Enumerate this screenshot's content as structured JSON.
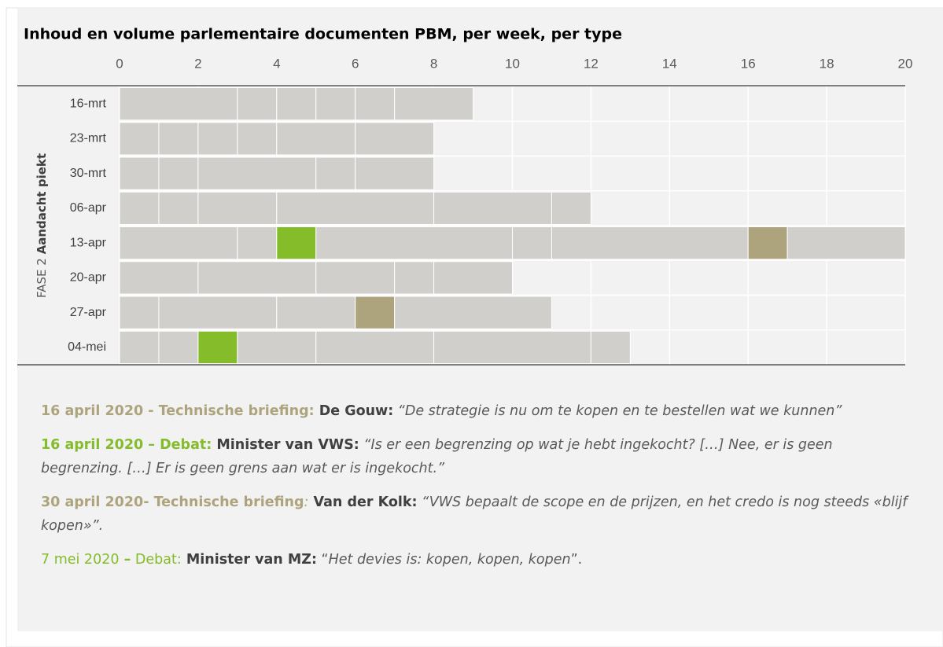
{
  "chart_data": {
    "type": "stacked-barh",
    "title": "Inhoud en volume parlementaire documenten PBM, per week, per type",
    "y_label_parts": [
      "FASE 2",
      "Aandacht piekt"
    ],
    "xlim": [
      0,
      20
    ],
    "xticks": [
      0,
      2,
      4,
      6,
      8,
      10,
      12,
      14,
      16,
      18,
      20
    ],
    "grid": true,
    "rows": [
      {
        "label": "16-mrt",
        "segments": [
          {
            "value": 3,
            "color": "#d0cfcb"
          },
          {
            "value": 1,
            "color": "#d0cfcb"
          },
          {
            "value": 1,
            "color": "#d0cfcb"
          },
          {
            "value": 1,
            "color": "#d0cfcb"
          },
          {
            "value": 1,
            "color": "#d0cfcb"
          },
          {
            "value": 2,
            "color": "#d0cfcb"
          }
        ]
      },
      {
        "label": "23-mrt",
        "segments": [
          {
            "value": 1,
            "color": "#d0cfcb"
          },
          {
            "value": 1,
            "color": "#d0cfcb"
          },
          {
            "value": 1,
            "color": "#d0cfcb"
          },
          {
            "value": 1,
            "color": "#d0cfcb"
          },
          {
            "value": 2,
            "color": "#d0cfcb"
          },
          {
            "value": 2,
            "color": "#d0cfcb"
          }
        ]
      },
      {
        "label": "30-mrt",
        "segments": [
          {
            "value": 1,
            "color": "#d0cfcb"
          },
          {
            "value": 1,
            "color": "#d0cfcb"
          },
          {
            "value": 3,
            "color": "#d0cfcb"
          },
          {
            "value": 1,
            "color": "#d0cfcb"
          },
          {
            "value": 2,
            "color": "#d0cfcb"
          }
        ]
      },
      {
        "label": "06-apr",
        "segments": [
          {
            "value": 1,
            "color": "#d0cfcb"
          },
          {
            "value": 1,
            "color": "#d0cfcb"
          },
          {
            "value": 2,
            "color": "#d0cfcb"
          },
          {
            "value": 4,
            "color": "#d0cfcb"
          },
          {
            "value": 3,
            "color": "#d0cfcb"
          },
          {
            "value": 1,
            "color": "#d0cfcb"
          }
        ]
      },
      {
        "label": "13-apr",
        "segments": [
          {
            "value": 3,
            "color": "#d0cfcb"
          },
          {
            "value": 1,
            "color": "#d0cfcb"
          },
          {
            "value": 1,
            "color": "#84bc2a"
          },
          {
            "value": 5,
            "color": "#d0cfcb"
          },
          {
            "value": 1,
            "color": "#d0cfcb"
          },
          {
            "value": 5,
            "color": "#d0cfcb"
          },
          {
            "value": 1,
            "color": "#ada47e"
          },
          {
            "value": 3,
            "color": "#d0cfcb"
          }
        ]
      },
      {
        "label": "20-apr",
        "segments": [
          {
            "value": 2,
            "color": "#d0cfcb"
          },
          {
            "value": 3,
            "color": "#d0cfcb"
          },
          {
            "value": 2,
            "color": "#d0cfcb"
          },
          {
            "value": 1,
            "color": "#d0cfcb"
          },
          {
            "value": 2,
            "color": "#d0cfcb"
          }
        ]
      },
      {
        "label": "27-apr",
        "segments": [
          {
            "value": 1,
            "color": "#d0cfcb"
          },
          {
            "value": 3,
            "color": "#d0cfcb"
          },
          {
            "value": 2,
            "color": "#d0cfcb"
          },
          {
            "value": 1,
            "color": "#ada47e"
          },
          {
            "value": 4,
            "color": "#d0cfcb"
          }
        ]
      },
      {
        "label": "04-mei",
        "segments": [
          {
            "value": 1,
            "color": "#d0cfcb"
          },
          {
            "value": 1,
            "color": "#d0cfcb"
          },
          {
            "value": 1,
            "color": "#84bc2a"
          },
          {
            "value": 2,
            "color": "#d0cfcb"
          },
          {
            "value": 3,
            "color": "#d0cfcb"
          },
          {
            "value": 4,
            "color": "#d0cfcb"
          },
          {
            "value": 1,
            "color": "#d0cfcb"
          }
        ]
      }
    ]
  },
  "notes": [
    [
      {
        "text": "16 april 2020 - Technische briefing:",
        "style": "tan bold"
      },
      {
        "text": " De Gouw:",
        "style": "dark bold"
      },
      {
        "text": " “De strategie is nu om te kopen en te bestellen wat we kunnen”",
        "style": "italic"
      }
    ],
    [
      {
        "text": "16 april 2020 – Debat:",
        "style": "green bold"
      },
      {
        "text": " Minister van VWS:",
        "style": "dark bold"
      },
      {
        "text": " “Is er een begrenzing op wat je hebt ingekocht? […] Nee, er is geen begrenzing. […] Er is geen grens aan wat er is ingekocht.”",
        "style": "italic"
      }
    ],
    [
      {
        "text": "30 april  2020- Technische briefing",
        "style": "tan bold"
      },
      {
        "text": ":",
        "style": "tan italic"
      },
      {
        "text": " Van der Kolk:",
        "style": "dark bold"
      },
      {
        "text": " “VWS bepaalt de scope en de prijzen, en het credo is nog steeds «blijf kopen»”.",
        "style": "italic"
      }
    ],
    [
      {
        "text": "7 mei 2020",
        "style": "green"
      },
      {
        "text": " –",
        "style": "green bold"
      },
      {
        "text": " Debat:",
        "style": "green"
      },
      {
        "text": " Minister van MZ:",
        "style": "dark bold"
      },
      {
        "text": " “",
        "style": ""
      },
      {
        "text": "Het devies is: kopen, kopen, kopen",
        "style": "italic"
      },
      {
        "text": "”.",
        "style": ""
      }
    ]
  ]
}
